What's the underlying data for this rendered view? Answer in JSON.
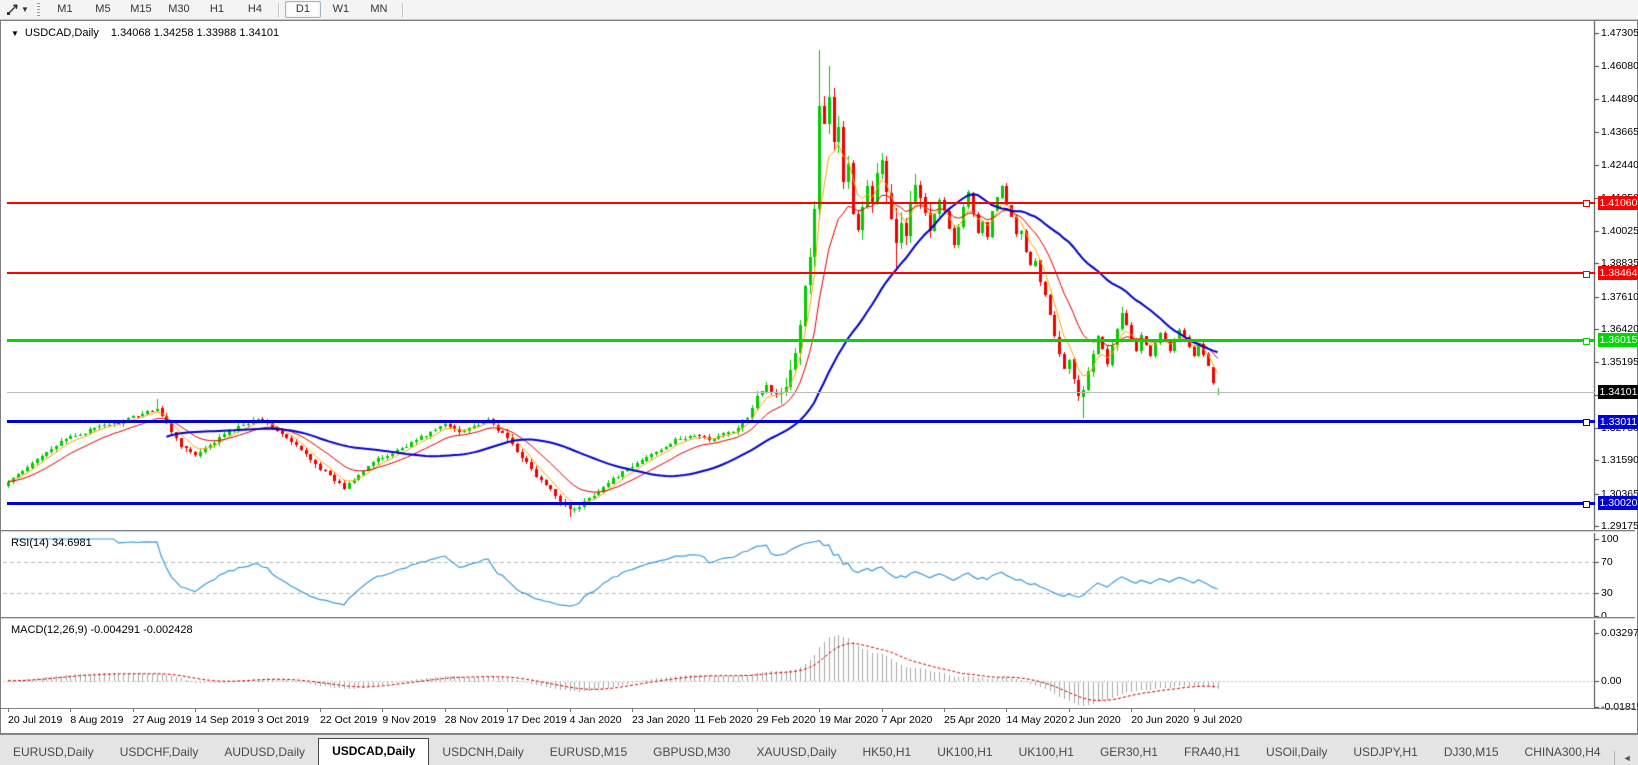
{
  "toolbar": {
    "timeframes": [
      "M1",
      "M5",
      "M15",
      "M30",
      "H1",
      "H4",
      "D1",
      "W1",
      "MN"
    ],
    "active_timeframe": "D1"
  },
  "chart": {
    "title": {
      "symbol": "USDCAD,Daily",
      "values": "1.34068 1.34258 1.33988 1.34101"
    },
    "price_axis_ticks": [
      "1.47305",
      "1.46080",
      "1.44890",
      "1.43665",
      "1.42440",
      "1.41250",
      "1.40025",
      "1.38835",
      "1.37610",
      "1.36420",
      "1.35195",
      "1.34005",
      "1.32780",
      "1.31590",
      "1.30365",
      "1.29175"
    ],
    "levels": [
      {
        "value": "1.41060",
        "color": "#FF0000",
        "width": 2
      },
      {
        "value": "1.38464",
        "color": "#FF0000",
        "width": 2
      },
      {
        "value": "1.36015",
        "color": "#00D800",
        "width": 3
      },
      {
        "value": "1.33011",
        "color": "#0000D8",
        "width": 3
      },
      {
        "value": "1.30020",
        "color": "#0000D8",
        "width": 3
      }
    ],
    "current_price": {
      "value": "1.34101",
      "line_color": "#BBBBBB",
      "tag_bg": "#000000"
    },
    "x_labels": [
      "20 Jul 2019",
      "8 Aug 2019",
      "27 Aug 2019",
      "14 Sep 2019",
      "3 Oct 2019",
      "22 Oct 2019",
      "9 Nov 2019",
      "28 Nov 2019",
      "17 Dec 2019",
      "4 Jan 2020",
      "23 Jan 2020",
      "11 Feb 2020",
      "29 Feb 2020",
      "19 Mar 2020",
      "7 Apr 2020",
      "25 Apr 2020",
      "14 May 2020",
      "2 Jun 2020",
      "20 Jun 2020",
      "9 Jul 2020"
    ]
  },
  "indicators": {
    "rsi": {
      "label": "RSI(14) 34.6981",
      "period": 14,
      "value": 34.6981,
      "ticks": [
        "100",
        "70",
        "30",
        "0"
      ],
      "levels": [
        70,
        30
      ]
    },
    "macd": {
      "label": "MACD(12,26,9) -0.004291 -0.002428",
      "fast": 12,
      "slow": 26,
      "signal": 9,
      "main_value": -0.004291,
      "signal_value": -0.002428,
      "ticks": [
        "0.032972",
        "0.00",
        "-0.01815"
      ],
      "axis_max": 0.032972,
      "axis_min": -0.01815
    }
  },
  "tabs": {
    "items": [
      {
        "label": "EURUSD,Daily",
        "active": false
      },
      {
        "label": "USDCHF,Daily",
        "active": false
      },
      {
        "label": "AUDUSD,Daily",
        "active": false
      },
      {
        "label": "USDCAD,Daily",
        "active": true
      },
      {
        "label": "USDCNH,Daily",
        "active": false
      },
      {
        "label": "EURUSD,M15",
        "active": false
      },
      {
        "label": "GBPUSD,M30",
        "active": false
      },
      {
        "label": "XAUUSD,Daily",
        "active": false
      },
      {
        "label": "HK50,H1",
        "active": false
      },
      {
        "label": "UK100,H1",
        "active": false
      },
      {
        "label": "UK100,H1",
        "active": false
      },
      {
        "label": "GER30,H1",
        "active": false
      },
      {
        "label": "FRA40,H1",
        "active": false
      },
      {
        "label": "USOil,Daily",
        "active": false
      },
      {
        "label": "USDJPY,H1",
        "active": false
      },
      {
        "label": "DJ30,M15",
        "active": false
      },
      {
        "label": "CHINA300,H4",
        "active": false
      }
    ],
    "nav_left": "◄",
    "nav_right": "►"
  },
  "colors": {
    "up": "#00CC00",
    "down": "#EE0000",
    "ma_fast": "#FFA500",
    "ma_mid": "#E00000",
    "ma_slow": "#0000C8",
    "rsi": "#3F9BD8",
    "rsi_levels": "#B8B8B8",
    "macd_hist": "#A9A9A9",
    "macd_signal": "#D00000",
    "axis": "#404040"
  },
  "chart_data": {
    "type": "candlestick",
    "symbol": "USDCAD",
    "timeframe": "Daily",
    "display_ohlc": {
      "open": 1.34068,
      "high": 1.34258,
      "low": 1.33988,
      "close": 1.34101
    },
    "bars": 253,
    "price_axis_top": 1.47305,
    "price_axis_bottom": 1.29175,
    "close_anchors": [
      [
        0,
        1.308
      ],
      [
        4,
        1.313
      ],
      [
        8,
        1.3195
      ],
      [
        13,
        1.3245
      ],
      [
        17,
        1.3268
      ],
      [
        20,
        1.329
      ],
      [
        24,
        1.3302
      ],
      [
        28,
        1.3332
      ],
      [
        31,
        1.3352
      ],
      [
        33,
        1.3292
      ],
      [
        36,
        1.3215
      ],
      [
        39,
        1.3175
      ],
      [
        42,
        1.3212
      ],
      [
        45,
        1.3255
      ],
      [
        49,
        1.3292
      ],
      [
        52,
        1.3315
      ],
      [
        55,
        1.3282
      ],
      [
        58,
        1.324
      ],
      [
        62,
        1.318
      ],
      [
        65,
        1.313
      ],
      [
        68,
        1.3085
      ],
      [
        70,
        1.3058
      ],
      [
        73,
        1.311
      ],
      [
        76,
        1.3152
      ],
      [
        80,
        1.3185
      ],
      [
        84,
        1.3225
      ],
      [
        88,
        1.3262
      ],
      [
        91,
        1.3292
      ],
      [
        94,
        1.3265
      ],
      [
        97,
        1.3285
      ],
      [
        100,
        1.3308
      ],
      [
        102,
        1.3272
      ],
      [
        104,
        1.324
      ],
      [
        107,
        1.3172
      ],
      [
        110,
        1.31
      ],
      [
        113,
        1.3048
      ],
      [
        116,
        1.2995
      ],
      [
        118,
        1.2975
      ],
      [
        121,
        1.3022
      ],
      [
        124,
        1.3062
      ],
      [
        127,
        1.3102
      ],
      [
        130,
        1.3135
      ],
      [
        133,
        1.3172
      ],
      [
        136,
        1.3202
      ],
      [
        139,
        1.3232
      ],
      [
        143,
        1.3252
      ],
      [
        146,
        1.3235
      ],
      [
        149,
        1.3255
      ],
      [
        152,
        1.3272
      ],
      [
        154,
        1.3322
      ],
      [
        156,
        1.3402
      ],
      [
        158,
        1.3438
      ],
      [
        160,
        1.3392
      ],
      [
        162,
        1.3448
      ],
      [
        164,
        1.3562
      ],
      [
        166,
        1.3788
      ],
      [
        168,
        1.4068
      ],
      [
        169,
        1.4482
      ],
      [
        170,
        1.4388
      ],
      [
        171,
        1.4508
      ],
      [
        172,
        1.4318
      ],
      [
        173,
        1.4392
      ],
      [
        174,
        1.4188
      ],
      [
        175,
        1.4248
      ],
      [
        176,
        1.4068
      ],
      [
        177,
        1.3998
      ],
      [
        178,
        1.4082
      ],
      [
        179,
        1.4162
      ],
      [
        180,
        1.4108
      ],
      [
        181,
        1.4222
      ],
      [
        182,
        1.4258
      ],
      [
        183,
        1.4132
      ],
      [
        184,
        1.4028
      ],
      [
        185,
        1.3962
      ],
      [
        186,
        1.4052
      ],
      [
        187,
        1.4002
      ],
      [
        188,
        1.4092
      ],
      [
        189,
        1.4168
      ],
      [
        190,
        1.4122
      ],
      [
        191,
        1.4052
      ],
      [
        192,
        1.3988
      ],
      [
        193,
        1.4062
      ],
      [
        194,
        1.4112
      ],
      [
        195,
        1.4082
      ],
      [
        196,
        1.4012
      ],
      [
        197,
        1.3952
      ],
      [
        198,
        1.4022
      ],
      [
        199,
        1.4092
      ],
      [
        200,
        1.4142
      ],
      [
        201,
        1.4062
      ],
      [
        202,
        1.3992
      ],
      [
        203,
        1.4032
      ],
      [
        204,
        1.3978
      ],
      [
        205,
        1.4082
      ],
      [
        206,
        1.4122
      ],
      [
        207,
        1.4168
      ],
      [
        208,
        1.4102
      ],
      [
        209,
        1.4058
      ],
      [
        210,
        1.3998
      ],
      [
        211,
        1.4012
      ],
      [
        212,
        1.3932
      ],
      [
        213,
        1.3872
      ],
      [
        214,
        1.3902
      ],
      [
        215,
        1.3822
      ],
      [
        216,
        1.3762
      ],
      [
        217,
        1.3702
      ],
      [
        218,
        1.3622
      ],
      [
        219,
        1.3562
      ],
      [
        220,
        1.3502
      ],
      [
        221,
        1.3522
      ],
      [
        222,
        1.3452
      ],
      [
        223,
        1.3398
      ],
      [
        224,
        1.3422
      ],
      [
        225,
        1.3482
      ],
      [
        226,
        1.3552
      ],
      [
        227,
        1.3612
      ],
      [
        228,
        1.3562
      ],
      [
        229,
        1.3508
      ],
      [
        230,
        1.3582
      ],
      [
        231,
        1.3652
      ],
      [
        232,
        1.3712
      ],
      [
        233,
        1.3662
      ],
      [
        234,
        1.3602
      ],
      [
        235,
        1.3562
      ],
      [
        236,
        1.3622
      ],
      [
        237,
        1.3582
      ],
      [
        238,
        1.3542
      ],
      [
        239,
        1.3592
      ],
      [
        240,
        1.3632
      ],
      [
        241,
        1.3602
      ],
      [
        242,
        1.3562
      ],
      [
        243,
        1.3602
      ],
      [
        244,
        1.3642
      ],
      [
        245,
        1.3612
      ],
      [
        246,
        1.3572
      ],
      [
        247,
        1.3542
      ],
      [
        248,
        1.3582
      ],
      [
        249,
        1.3552
      ],
      [
        250,
        1.3502
      ],
      [
        251,
        1.3448
      ],
      [
        252,
        1.34101
      ]
    ],
    "wick_overrides": {
      "31": {
        "h": 1.3385
      },
      "117": {
        "l": 1.2952
      },
      "169": {
        "h": 1.4669
      },
      "171": {
        "h": 1.4608
      },
      "185": {
        "l": 1.3855
      },
      "207": {
        "h": 1.4173
      },
      "224": {
        "l": 1.3316
      }
    },
    "last_candle": {
      "o": 1.34068,
      "h": 1.34258,
      "l": 1.33988,
      "c": 1.34101
    },
    "moving_averages": [
      {
        "kind": "ema",
        "period": 5,
        "color": "#FFA500",
        "width": 1
      },
      {
        "kind": "ema",
        "period": 13,
        "color": "#E00000",
        "width": 1
      },
      {
        "kind": "sma",
        "period": 34,
        "color": "#0000C8",
        "width": 2
      }
    ]
  }
}
